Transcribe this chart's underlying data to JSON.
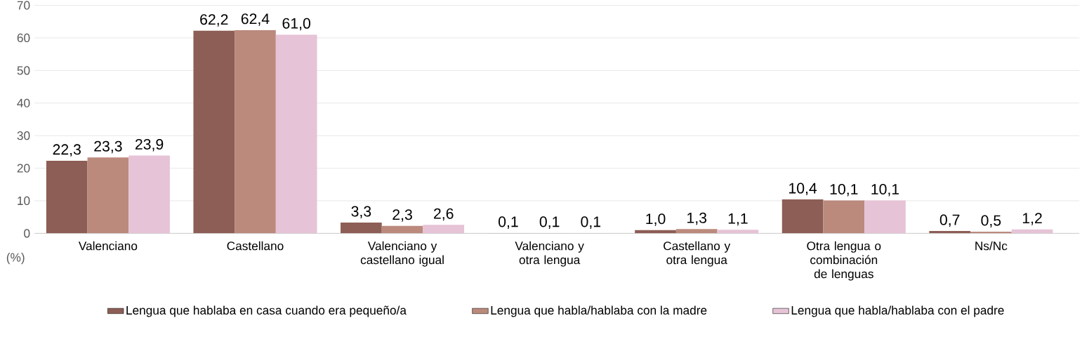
{
  "chart_data": {
    "type": "bar",
    "ylabel": "(%)",
    "categories": [
      "Valenciano",
      "Castellano",
      "Valenciano y castellano igual",
      "Valenciano y otra lengua",
      "Castellano y otra lengua",
      "Otra lengua o combinación de lenguas",
      "Ns/Nc"
    ],
    "series": [
      {
        "name": "Lengua que hablaba en casa cuando era pequeño/a",
        "color": "#8c5e55",
        "values": [
          22.3,
          62.2,
          3.3,
          0.1,
          1.0,
          10.4,
          0.7
        ],
        "value_labels": [
          "22,3",
          "62,2",
          "3,3",
          "0,1",
          "1,0",
          "10,4",
          "0,7"
        ]
      },
      {
        "name": "Lengua que habla/hablaba con la madre",
        "color": "#bb8a7c",
        "values": [
          23.3,
          62.4,
          2.3,
          0.1,
          1.3,
          10.1,
          0.5
        ],
        "value_labels": [
          "23,3",
          "62,4",
          "2,3",
          "0,1",
          "1,3",
          "10,1",
          "0,5"
        ]
      },
      {
        "name": "Lengua que habla/hablaba con el padre",
        "color": "#e6c3d6",
        "values": [
          23.9,
          61.0,
          2.6,
          0.1,
          1.1,
          10.1,
          1.2
        ],
        "value_labels": [
          "23,9",
          "61,0",
          "2,6",
          "0,1",
          "1,1",
          "10,1",
          "1,2"
        ]
      }
    ],
    "ylim": [
      0,
      70
    ],
    "yticks": [
      0,
      10,
      20,
      30,
      40,
      50,
      60,
      70
    ],
    "grid": "y",
    "legend": "bottom"
  }
}
